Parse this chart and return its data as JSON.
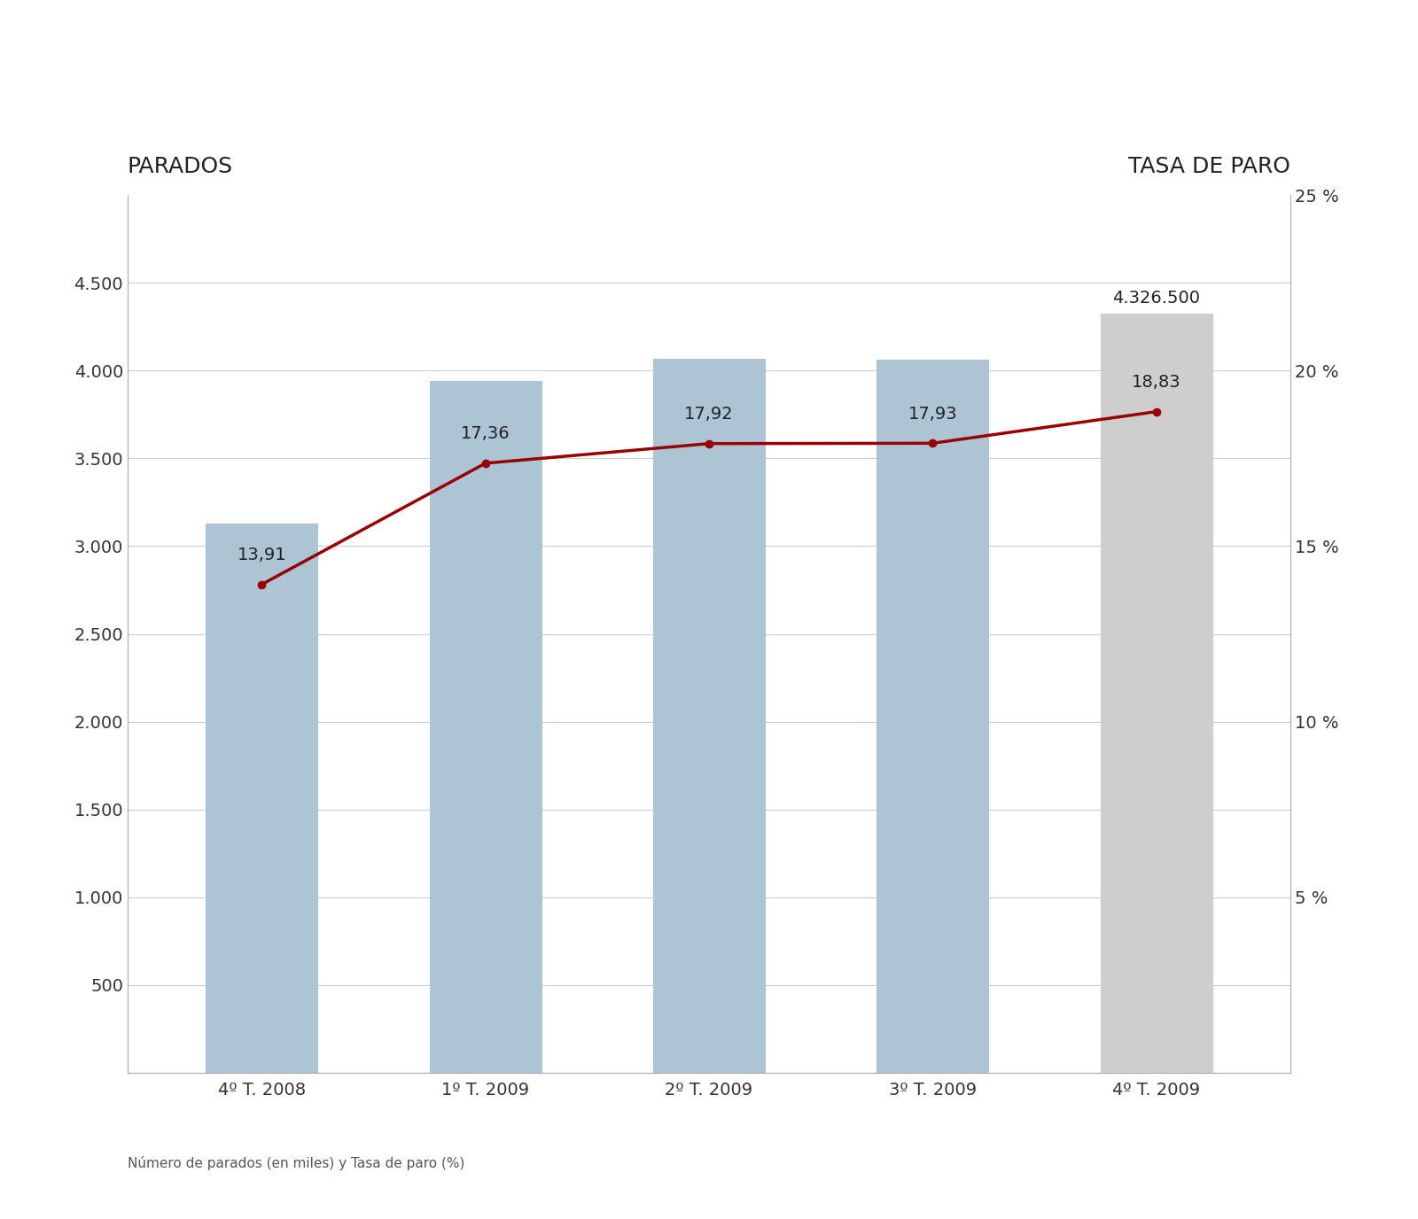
{
  "categories": [
    "4º T. 2008",
    "1º T. 2009",
    "2º T. 2009",
    "3º T. 2009",
    "4º T. 2009"
  ],
  "bar_values": [
    3129.0,
    3940.6,
    4065.0,
    4061.0,
    4326.5
  ],
  "bar_colors": [
    "#adc4d5",
    "#adc4d5",
    "#adc4d5",
    "#adc4d5",
    "#cecece"
  ],
  "bar_edge_colors": [
    "#adc4d5",
    "#adc4d5",
    "#adc4d5",
    "#adc4d5",
    "#cecece"
  ],
  "line_values": [
    13.91,
    17.36,
    17.92,
    17.93,
    18.83
  ],
  "line_color": "#990000",
  "line_annotations": [
    "13,91",
    "17,36",
    "17,92",
    "17,93",
    "18,83"
  ],
  "bar_top_label": "4.326.500",
  "left_ylabel": "PARADOS",
  "right_ylabel": "TASA DE PARO",
  "left_ylim": [
    0,
    5000
  ],
  "right_ylim": [
    0,
    25
  ],
  "left_yticks": [
    0,
    500,
    1000,
    1500,
    2000,
    2500,
    3000,
    3500,
    4000,
    4500
  ],
  "right_yticks": [
    0,
    5,
    10,
    15,
    20,
    25
  ],
  "right_yticklabels": [
    "",
    "5 %",
    "10 %",
    "15 %",
    "20 %",
    "25 %"
  ],
  "footnote": "Número de parados (en miles) y Tasa de paro (%)",
  "fig_bg_color": "#ffffff",
  "plot_bg_color": "#ffffff",
  "grid_color": "#cccccc",
  "title_fontsize": 18,
  "annotation_fontsize": 14,
  "tick_fontsize": 14,
  "footnote_fontsize": 11,
  "bar_width": 0.5
}
